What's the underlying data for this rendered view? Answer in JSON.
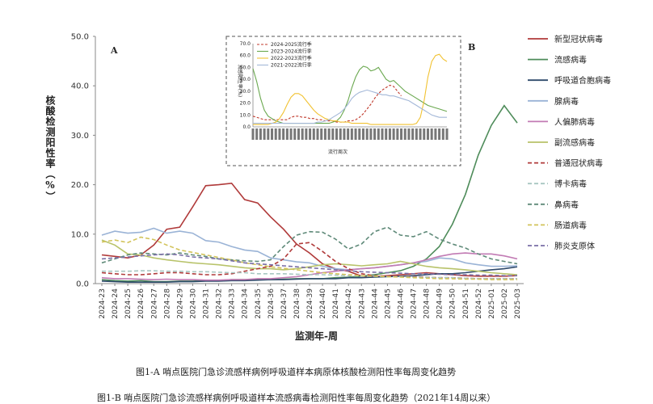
{
  "figure": {
    "caption_a": "图1-A   哨点医院门急诊流感样病例呼吸道样本病原体核酸检测阳性率每周变化趋势",
    "caption_b": "图1-B 哨点医院门急诊流感样病例呼吸道样本流感病毒检测阳性率每周变化趋势（2021年14周以来）",
    "panel_a_label": "A",
    "panel_b_label": "B"
  },
  "chart_data": [
    {
      "type": "line",
      "ylabel": "核酸检测阳性率（%）",
      "xlabel": "监测年-周",
      "ylim": [
        0,
        50
      ],
      "yticks": [
        "0.0",
        "10.0",
        "20.0",
        "30.0",
        "40.0",
        "50.0"
      ],
      "grid": false,
      "legend_position": "right",
      "categories": [
        "2024-23",
        "2024-24",
        "2024-25",
        "2024-26",
        "2024-27",
        "2024-28",
        "2024-29",
        "2024-30",
        "2024-31",
        "2024-32",
        "2024-33",
        "2024-34",
        "2024-35",
        "2024-36",
        "2024-37",
        "2024-38",
        "2024-39",
        "2024-40",
        "2024-41",
        "2024-42",
        "2024-43",
        "2024-44",
        "2024-45",
        "2024-46",
        "2024-47",
        "2024-48",
        "2024-49",
        "2024-50",
        "2024-51",
        "2024-52",
        "2025-01",
        "2025-02",
        "2025-03"
      ],
      "series": [
        {
          "name": "新型冠状病毒",
          "color": "#b03a3a",
          "dash": "",
          "values": [
            5.8,
            5.5,
            5.2,
            5.8,
            7.8,
            11.0,
            11.4,
            15.5,
            19.8,
            20.0,
            20.3,
            17.0,
            16.3,
            13.5,
            11.0,
            8.0,
            6.2,
            4.0,
            3.0,
            2.5,
            1.5,
            1.4,
            1.6,
            1.8,
            2.0,
            2.2,
            2.0,
            1.8,
            1.6,
            1.5,
            1.5,
            1.5,
            1.6
          ]
        },
        {
          "name": "流感病毒",
          "color": "#4e8c5a",
          "dash": "",
          "values": [
            0.8,
            0.6,
            0.5,
            0.6,
            0.4,
            0.4,
            0.5,
            0.5,
            0.6,
            0.6,
            0.8,
            0.8,
            0.8,
            0.8,
            0.9,
            1.0,
            1.0,
            1.0,
            1.2,
            1.3,
            1.5,
            1.8,
            2.2,
            2.6,
            3.5,
            5.0,
            7.5,
            12.0,
            18.0,
            26.0,
            32.0,
            36.0,
            32.5
          ]
        },
        {
          "name": "呼吸道合胞病毒",
          "color": "#2f4a6b",
          "dash": "",
          "values": [
            0.5,
            0.4,
            0.3,
            0.3,
            0.3,
            0.3,
            0.4,
            0.4,
            0.5,
            0.5,
            0.6,
            0.6,
            0.7,
            0.8,
            0.8,
            0.9,
            1.0,
            1.0,
            1.0,
            1.2,
            1.2,
            1.3,
            1.4,
            1.5,
            1.6,
            1.8,
            2.0,
            2.0,
            2.2,
            2.5,
            2.8,
            3.0,
            3.4
          ]
        },
        {
          "name": "腺病毒",
          "color": "#9ab3d6",
          "dash": "",
          "values": [
            9.8,
            10.6,
            10.2,
            10.4,
            11.2,
            10.2,
            10.6,
            10.2,
            8.7,
            8.4,
            7.5,
            6.8,
            6.5,
            5.2,
            4.8,
            4.4,
            4.2,
            3.5,
            3.0,
            2.8,
            3.0,
            3.2,
            3.5,
            3.8,
            4.2,
            4.5,
            5.2,
            5.0,
            4.2,
            3.8,
            3.5,
            3.5,
            3.6
          ]
        },
        {
          "name": "人偏肺病毒",
          "color": "#c27bb4",
          "dash": "",
          "values": [
            1.2,
            1.0,
            1.0,
            0.9,
            0.8,
            0.9,
            0.8,
            0.8,
            0.7,
            0.7,
            0.8,
            0.8,
            1.0,
            1.0,
            1.2,
            1.4,
            1.8,
            2.2,
            2.5,
            2.8,
            3.0,
            3.2,
            3.5,
            3.8,
            4.2,
            4.8,
            5.5,
            6.0,
            6.2,
            6.0,
            6.0,
            5.6,
            5.0
          ]
        },
        {
          "name": "副流感病毒",
          "color": "#b8c36a",
          "dash": "",
          "values": [
            8.8,
            7.8,
            6.0,
            5.8,
            5.2,
            4.8,
            4.5,
            4.2,
            4.0,
            3.8,
            3.5,
            3.2,
            3.0,
            3.0,
            2.8,
            3.0,
            3.4,
            3.8,
            4.0,
            3.8,
            3.6,
            3.8,
            4.0,
            4.5,
            4.0,
            3.5,
            3.2,
            3.0,
            2.8,
            2.5,
            2.2,
            2.0,
            1.8
          ]
        },
        {
          "name": "普通冠状病毒",
          "color": "#b03a3a",
          "dash": "5,3",
          "values": [
            2.2,
            2.0,
            1.8,
            1.8,
            2.0,
            2.2,
            2.2,
            2.0,
            1.8,
            1.8,
            2.0,
            2.5,
            3.0,
            3.5,
            5.0,
            8.0,
            8.3,
            6.5,
            4.5,
            3.0,
            2.0,
            1.6,
            1.5,
            1.4,
            1.4,
            1.3,
            1.2,
            1.2,
            1.1,
            1.0,
            1.0,
            1.0,
            1.0
          ]
        },
        {
          "name": "博卡病毒",
          "color": "#a8c7c2",
          "dash": "5,3",
          "values": [
            2.5,
            2.5,
            2.5,
            2.6,
            2.6,
            2.5,
            2.5,
            2.4,
            2.4,
            2.3,
            2.2,
            2.2,
            2.0,
            2.0,
            2.0,
            1.9,
            1.8,
            1.8,
            1.7,
            1.6,
            1.5,
            1.5,
            1.4,
            1.4,
            1.3,
            1.3,
            1.2,
            1.2,
            1.1,
            1.0,
            1.0,
            1.0,
            1.0
          ]
        },
        {
          "name": "鼻病毒",
          "color": "#5f8a79",
          "dash": "5,3",
          "values": [
            4.2,
            5.0,
            5.8,
            6.2,
            6.0,
            5.8,
            6.2,
            5.8,
            5.5,
            5.0,
            4.8,
            4.6,
            4.5,
            4.8,
            7.5,
            9.8,
            10.5,
            10.4,
            9.0,
            7.0,
            8.0,
            10.5,
            11.4,
            9.8,
            9.5,
            10.5,
            9.0,
            8.0,
            7.2,
            6.0,
            5.0,
            4.5,
            4.0
          ]
        },
        {
          "name": "肠道病毒",
          "color": "#d2c35a",
          "dash": "5,3",
          "values": [
            8.4,
            8.8,
            8.3,
            9.4,
            8.9,
            7.8,
            6.8,
            6.3,
            5.8,
            5.3,
            4.8,
            4.2,
            3.8,
            3.4,
            3.1,
            2.8,
            2.5,
            2.2,
            2.0,
            1.8,
            1.6,
            1.5,
            1.4,
            1.3,
            1.2,
            1.1,
            1.0,
            1.0,
            0.9,
            0.9,
            0.8,
            0.8,
            0.8
          ]
        },
        {
          "name": "肺炎支原体",
          "color": "#7a6ea6",
          "dash": "5,3",
          "values": [
            5.0,
            5.2,
            5.4,
            5.6,
            5.8,
            6.0,
            5.8,
            5.4,
            5.2,
            5.0,
            4.6,
            4.2,
            4.0,
            3.8,
            3.6,
            3.4,
            3.2,
            3.0,
            2.8,
            2.6,
            2.4,
            2.3,
            2.2,
            2.1,
            2.0,
            2.0,
            1.9,
            1.8,
            1.8,
            1.7,
            1.7,
            1.6,
            1.6
          ]
        }
      ]
    },
    {
      "type": "line",
      "ylabel": "流感阳性率(%)",
      "xlabel": "流行周次",
      "ylim": [
        0,
        70
      ],
      "yticks": [
        "0.0",
        "10.0",
        "20.0",
        "30.0",
        "40.0",
        "50.0",
        "60.0",
        "70.0"
      ],
      "xtick_count": 52,
      "legend_position": "top-left",
      "series": [
        {
          "name": "2024-2025流行季",
          "color": "#c0392b",
          "dash": "3,2",
          "values": [
            9,
            8,
            7,
            6,
            6,
            6,
            6,
            6,
            6,
            6,
            8,
            9,
            9,
            8,
            8,
            7,
            7,
            6,
            6,
            5,
            5,
            5,
            4,
            4,
            4,
            5,
            5,
            6,
            8,
            11,
            15,
            19,
            24,
            28,
            31,
            33,
            35,
            34,
            30,
            26
          ]
        },
        {
          "name": "2023-2024流行季",
          "color": "#6aa84f",
          "dash": "",
          "values": [
            49,
            38,
            24,
            14,
            9,
            7,
            5,
            4,
            3,
            3,
            3,
            3,
            3,
            3,
            3,
            3,
            3,
            3,
            3,
            3,
            3,
            4,
            5,
            8,
            14,
            22,
            33,
            42,
            48,
            51,
            50,
            47,
            48,
            50,
            45,
            40,
            38,
            39,
            36,
            33,
            30,
            28,
            26,
            24,
            22,
            20,
            18,
            17,
            16,
            15,
            14,
            13
          ]
        },
        {
          "name": "2022-2023流行季",
          "color": "#f1c232",
          "dash": "",
          "values": [
            2,
            2,
            2,
            2,
            2,
            3,
            4,
            7,
            12,
            19,
            25,
            28,
            28,
            26,
            22,
            18,
            14,
            11,
            9,
            7,
            6,
            5,
            5,
            4,
            4,
            4,
            3,
            3,
            3,
            3,
            3,
            2,
            2,
            2,
            2,
            2,
            2,
            2,
            2,
            2,
            2,
            2,
            2,
            3,
            8,
            22,
            42,
            55,
            60,
            61,
            57,
            55
          ]
        },
        {
          "name": "2021-2022流行季",
          "color": "#a4b8d8",
          "dash": "",
          "values": [
            3,
            3,
            3,
            3,
            3,
            3,
            3,
            3,
            3,
            3,
            3,
            3,
            3,
            3,
            3,
            3,
            3,
            4,
            4,
            5,
            6,
            8,
            10,
            12,
            15,
            19,
            24,
            27,
            29,
            30,
            31,
            30,
            29,
            28,
            27,
            27,
            26,
            26,
            25,
            24,
            23,
            22,
            20,
            18,
            16,
            14,
            12,
            10,
            9,
            8,
            8,
            8
          ]
        }
      ]
    }
  ]
}
